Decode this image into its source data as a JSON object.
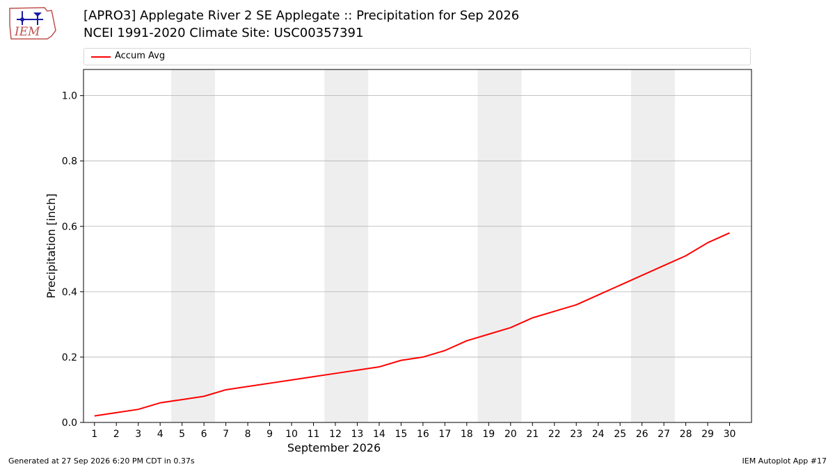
{
  "header": {
    "title_line1": "[APRO3] Applegate River 2 SE Applegate :: Precipitation for Sep 2026",
    "title_line2": "NCEI 1991-2020 Climate Site: USC00357391",
    "logo_text": "IEM"
  },
  "footer": {
    "generated": "Generated at 27 Sep 2026 6:20 PM CDT in 0.37s",
    "app": "IEM Autoplot App #17"
  },
  "colors": {
    "series": "#ff0000",
    "weekend_band": "#eeeeee",
    "grid": "#b0b0b0"
  },
  "chart_data": {
    "type": "line",
    "xlabel": "September 2026",
    "ylabel": "Precipitation [inch]",
    "x": [
      1,
      2,
      3,
      4,
      5,
      6,
      7,
      8,
      9,
      10,
      11,
      12,
      13,
      14,
      15,
      16,
      17,
      18,
      19,
      20,
      21,
      22,
      23,
      24,
      25,
      26,
      27,
      28,
      29,
      30
    ],
    "ylim": [
      0,
      1.08
    ],
    "xlim": [
      0.5,
      31.0
    ],
    "yticks": [
      0.0,
      0.2,
      0.4,
      0.6,
      0.8,
      1.0
    ],
    "ytick_labels": [
      "0.0",
      "0.2",
      "0.4",
      "0.6",
      "0.8",
      "1.0"
    ],
    "xtick_labels": [
      "1",
      "2",
      "3",
      "4",
      "5",
      "6",
      "7",
      "8",
      "9",
      "10",
      "11",
      "12",
      "13",
      "14",
      "15",
      "16",
      "17",
      "18",
      "19",
      "20",
      "21",
      "22",
      "23",
      "24",
      "25",
      "26",
      "27",
      "28",
      "29",
      "30"
    ],
    "grid": "horizontal",
    "legend_position": "top",
    "shaded_day_ranges": [
      [
        5,
        6
      ],
      [
        12,
        13
      ],
      [
        19,
        20
      ],
      [
        26,
        27
      ]
    ],
    "series": [
      {
        "name": "Accum Avg",
        "values": [
          0.02,
          0.03,
          0.04,
          0.06,
          0.07,
          0.08,
          0.1,
          0.11,
          0.12,
          0.13,
          0.14,
          0.15,
          0.16,
          0.17,
          0.19,
          0.2,
          0.22,
          0.25,
          0.27,
          0.29,
          0.32,
          0.34,
          0.36,
          0.39,
          0.42,
          0.45,
          0.48,
          0.51,
          0.55,
          0.58
        ]
      }
    ]
  }
}
